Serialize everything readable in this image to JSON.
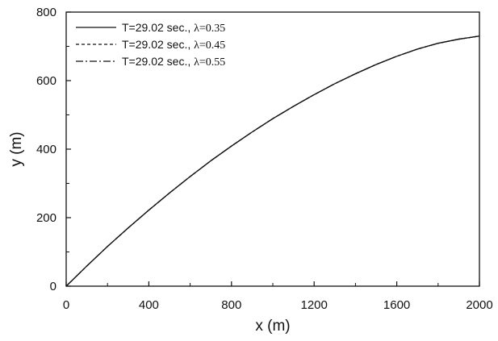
{
  "chart_data": {
    "type": "line",
    "title": "",
    "xlabel": "x (m)",
    "ylabel": "y (m)",
    "xlim": [
      0,
      2000
    ],
    "ylim": [
      0,
      800
    ],
    "x_ticks": [
      0,
      400,
      800,
      1200,
      1600,
      2000
    ],
    "x_tick_labels": [
      "0",
      "400",
      "800",
      "1200",
      "1600",
      "2000"
    ],
    "y_ticks": [
      0,
      200,
      400,
      600,
      800
    ],
    "y_tick_labels": [
      "0",
      "200",
      "400",
      "600",
      "800"
    ],
    "grid": false,
    "legend_position": "top-left",
    "x": [
      0,
      100,
      200,
      300,
      400,
      500,
      600,
      700,
      800,
      900,
      1000,
      1100,
      1200,
      1300,
      1400,
      1500,
      1600,
      1700,
      1800,
      1900,
      2000
    ],
    "series": [
      {
        "name_main": "T=29.02 sec., ",
        "name_param": "λ=0.35",
        "line_style": "solid",
        "values": [
          0,
          59,
          116,
          170,
          222,
          272,
          320,
          366,
          409,
          450,
          489,
          525,
          559,
          591,
          620,
          647,
          671,
          692,
          709,
          721,
          730
        ]
      },
      {
        "name_main": "T=29.02 sec., ",
        "name_param": "λ=0.45",
        "line_style": "dashed",
        "values": [
          0,
          59,
          116,
          170,
          222,
          272,
          320,
          366,
          409,
          450,
          489,
          525,
          559,
          591,
          620,
          647,
          671,
          692,
          709,
          721,
          730
        ]
      },
      {
        "name_main": "T=29.02 sec., ",
        "name_param": "λ=0.55",
        "line_style": "dash-dot",
        "values": [
          0,
          59,
          116,
          170,
          222,
          272,
          320,
          366,
          409,
          450,
          489,
          525,
          559,
          591,
          620,
          647,
          671,
          692,
          709,
          721,
          730
        ]
      }
    ]
  }
}
